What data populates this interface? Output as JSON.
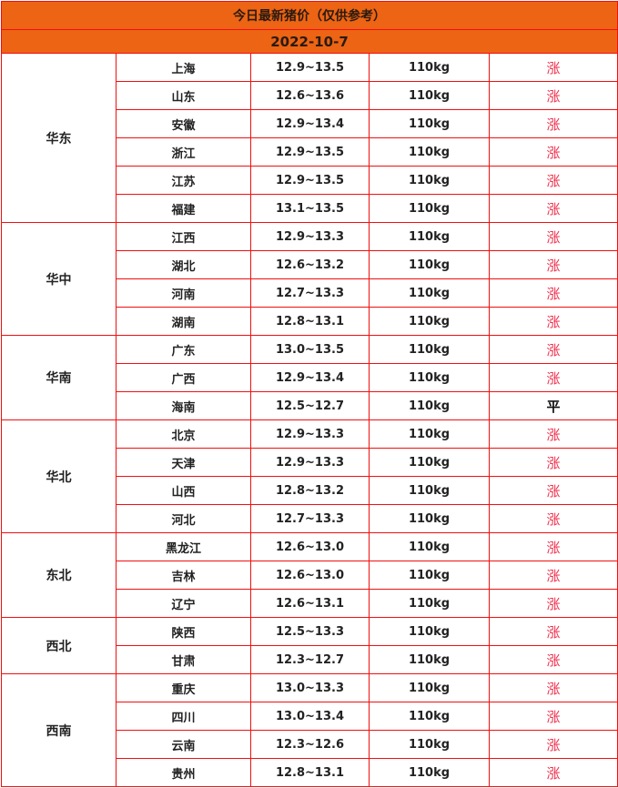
{
  "title": "今日最新猪价（仅供参考）",
  "date": "2022-10-7",
  "colors": {
    "header_bg": "#ec6414",
    "border": "#f01010",
    "up": "#f0304c",
    "flat": "#111111"
  },
  "regions": [
    {
      "name": "华东",
      "rows": [
        {
          "province": "上海",
          "price": "12.9~13.5",
          "weight": "110kg",
          "trend": "涨"
        },
        {
          "province": "山东",
          "price": "12.6~13.6",
          "weight": "110kg",
          "trend": "涨"
        },
        {
          "province": "安徽",
          "price": "12.9~13.4",
          "weight": "110kg",
          "trend": "涨"
        },
        {
          "province": "浙江",
          "price": "12.9~13.5",
          "weight": "110kg",
          "trend": "涨"
        },
        {
          "province": "江苏",
          "price": "12.9~13.5",
          "weight": "110kg",
          "trend": "涨"
        },
        {
          "province": "福建",
          "price": "13.1~13.5",
          "weight": "110kg",
          "trend": "涨"
        }
      ]
    },
    {
      "name": "华中",
      "rows": [
        {
          "province": "江西",
          "price": "12.9~13.3",
          "weight": "110kg",
          "trend": "涨"
        },
        {
          "province": "湖北",
          "price": "12.6~13.2",
          "weight": "110kg",
          "trend": "涨"
        },
        {
          "province": "河南",
          "price": "12.7~13.3",
          "weight": "110kg",
          "trend": "涨"
        },
        {
          "province": "湖南",
          "price": "12.8~13.1",
          "weight": "110kg",
          "trend": "涨"
        }
      ]
    },
    {
      "name": "华南",
      "rows": [
        {
          "province": "广东",
          "price": "13.0~13.5",
          "weight": "110kg",
          "trend": "涨"
        },
        {
          "province": "广西",
          "price": "12.9~13.4",
          "weight": "110kg",
          "trend": "涨"
        },
        {
          "province": "海南",
          "price": "12.5~12.7",
          "weight": "110kg",
          "trend": "平"
        }
      ]
    },
    {
      "name": "华北",
      "rows": [
        {
          "province": "北京",
          "price": "12.9~13.3",
          "weight": "110kg",
          "trend": "涨"
        },
        {
          "province": "天津",
          "price": "12.9~13.3",
          "weight": "110kg",
          "trend": "涨"
        },
        {
          "province": "山西",
          "price": "12.8~13.2",
          "weight": "110kg",
          "trend": "涨"
        },
        {
          "province": "河北",
          "price": "12.7~13.3",
          "weight": "110kg",
          "trend": "涨"
        }
      ]
    },
    {
      "name": "东北",
      "rows": [
        {
          "province": "黑龙江",
          "price": "12.6~13.0",
          "weight": "110kg",
          "trend": "涨"
        },
        {
          "province": "吉林",
          "price": "12.6~13.0",
          "weight": "110kg",
          "trend": "涨"
        },
        {
          "province": "辽宁",
          "price": "12.6~13.1",
          "weight": "110kg",
          "trend": "涨"
        }
      ]
    },
    {
      "name": "西北",
      "rows": [
        {
          "province": "陕西",
          "price": "12.5~13.3",
          "weight": "110kg",
          "trend": "涨"
        },
        {
          "province": "甘肃",
          "price": "12.3~12.7",
          "weight": "110kg",
          "trend": "涨"
        }
      ]
    },
    {
      "name": "西南",
      "rows": [
        {
          "province": "重庆",
          "price": "13.0~13.3",
          "weight": "110kg",
          "trend": "涨"
        },
        {
          "province": "四川",
          "price": "13.0~13.4",
          "weight": "110kg",
          "trend": "涨"
        },
        {
          "province": "云南",
          "price": "12.3~12.6",
          "weight": "110kg",
          "trend": "涨"
        },
        {
          "province": "贵州",
          "price": "12.8~13.1",
          "weight": "110kg",
          "trend": "涨"
        }
      ]
    }
  ]
}
